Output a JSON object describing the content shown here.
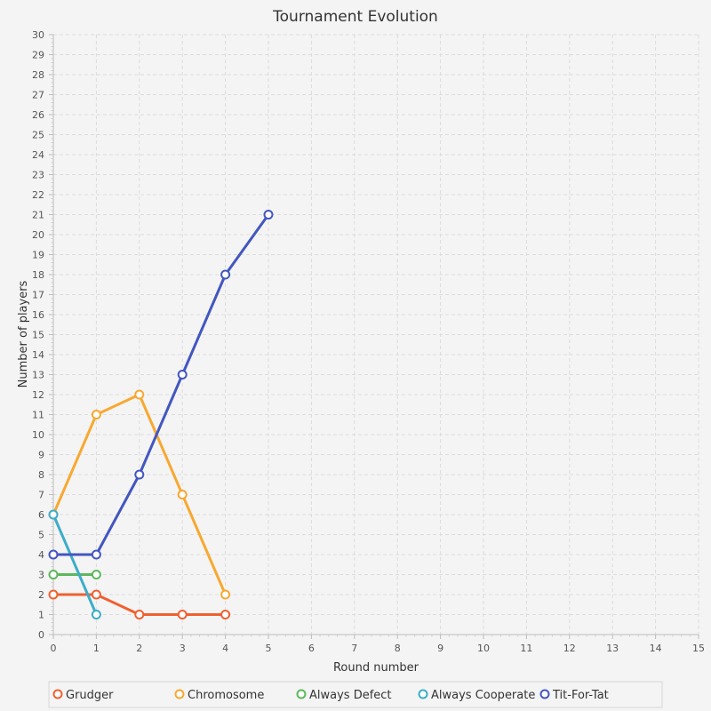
{
  "chart_data": {
    "type": "line",
    "title": "Tournament Evolution",
    "xlabel": "Round number",
    "ylabel": "Number of players",
    "xlim": [
      0,
      15
    ],
    "ylim": [
      0,
      30
    ],
    "xticks": [
      0,
      1,
      2,
      3,
      4,
      5,
      6,
      7,
      8,
      9,
      10,
      11,
      12,
      13,
      14,
      15
    ],
    "yticks": [
      0,
      1,
      2,
      3,
      4,
      5,
      6,
      7,
      8,
      9,
      10,
      11,
      12,
      13,
      14,
      15,
      16,
      17,
      18,
      19,
      20,
      21,
      22,
      23,
      24,
      25,
      26,
      27,
      28,
      29,
      30
    ],
    "grid": true,
    "legend": "bottom",
    "series": [
      {
        "name": "Grudger",
        "color": "#f06030",
        "x": [
          0,
          1,
          2,
          3,
          4
        ],
        "y": [
          2,
          2,
          1,
          1,
          1
        ]
      },
      {
        "name": "Chromosome",
        "color": "#f8a830",
        "x": [
          0,
          1,
          2,
          3,
          4
        ],
        "y": [
          6,
          11,
          12,
          7,
          2
        ]
      },
      {
        "name": "Always Defect",
        "color": "#5cb85c",
        "x": [
          0,
          1
        ],
        "y": [
          3,
          3
        ]
      },
      {
        "name": "Always Cooperate",
        "color": "#3cadc8",
        "x": [
          0,
          1
        ],
        "y": [
          6,
          1
        ]
      },
      {
        "name": "Tit-For-Tat",
        "color": "#4356c0",
        "x": [
          0,
          1,
          2,
          3,
          4,
          5
        ],
        "y": [
          4,
          4,
          8,
          13,
          18,
          21
        ]
      }
    ]
  }
}
